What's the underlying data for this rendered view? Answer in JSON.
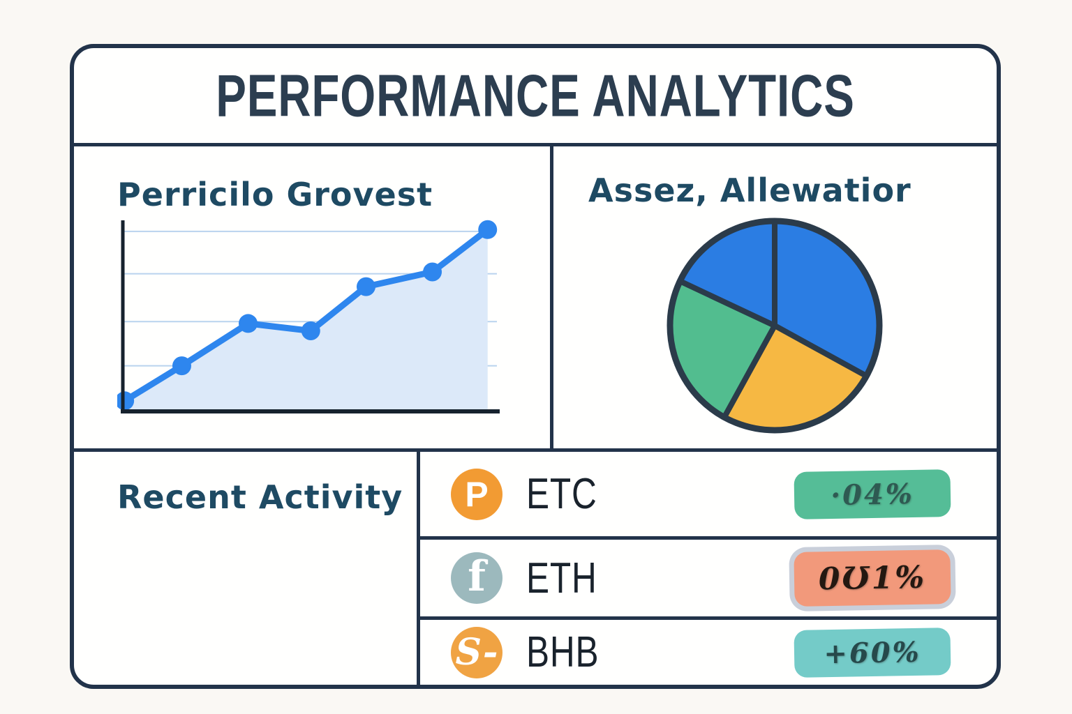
{
  "title": "PERFORMANCE ANALYTICS",
  "panels": {
    "portfolio_growth": {
      "title": "Perricilo Grovest"
    },
    "asset_allocation": {
      "title": "Assez, Allewatior"
    },
    "recent_activity": {
      "title": "Recent Activity"
    }
  },
  "activity_rows": [
    {
      "icon": "p-coin-icon",
      "icon_glyph": "P",
      "icon_glyph_class": "glyph-p",
      "icon_color": "#f29b33",
      "label": "ETC",
      "badge": {
        "text": "·04%",
        "bg": "#55bd97",
        "text_color": "#2e5a52",
        "border": ""
      }
    },
    {
      "icon": "f-coin-icon",
      "icon_glyph": "f",
      "icon_glyph_class": "glyph-f",
      "icon_color": "#9cb9bd",
      "label": "ETH",
      "badge": {
        "text": "0Ʊ1%",
        "bg": "#f2997b",
        "text_color": "#241811",
        "border": "#c9cfda"
      }
    },
    {
      "icon": "s-coin-icon",
      "icon_glyph": "S-",
      "icon_glyph_class": "glyph-s",
      "icon_color": "#f0a343",
      "label": "BHB",
      "badge": {
        "text": "+60%",
        "bg": "#74cbc8",
        "text_color": "#26494b",
        "border": ""
      }
    }
  ],
  "chart_data": [
    {
      "type": "line",
      "title": "Perricilo Grovest",
      "x": [
        1,
        2,
        3,
        4,
        5,
        6,
        7
      ],
      "x_positions_pct": [
        0.5,
        16,
        34,
        51,
        66,
        84,
        99
      ],
      "values": [
        5,
        24,
        47,
        43,
        67,
        75,
        98
      ],
      "ylim": [
        0,
        100
      ],
      "grid": true,
      "gridlines_y": [
        24,
        48,
        74,
        97
      ],
      "vertical_gridline": {
        "x_pct": 67.5,
        "y_from": 0,
        "y_to": 54
      },
      "legend": false,
      "line_color": "#2e86ee",
      "fill_color": "#dce9f9",
      "grid_color": "#b9d3ee",
      "axis_color": "#16222e"
    },
    {
      "type": "pie",
      "title": "Assez, Allewatior",
      "start_angle_deg": 0,
      "direction": "clockwise",
      "legend": false,
      "outline_color": "#2b3b4a",
      "slices": [
        {
          "label": "blue-right",
          "value": 33,
          "color": "#2b7de3"
        },
        {
          "label": "orange-bottom",
          "value": 25,
          "color": "#f6b843"
        },
        {
          "label": "green-left",
          "value": 24,
          "color": "#52bd8f"
        },
        {
          "label": "blue-topleft",
          "value": 18,
          "color": "#2b7de3"
        }
      ]
    }
  ],
  "colors": {
    "page_bg": "#faf8f4",
    "card_bg": "#fffffe",
    "card_border": "#22334a",
    "main_title_text": "#2c3e50",
    "panel_title_text": "#1e4a63",
    "row_label_text": "#19222c"
  }
}
